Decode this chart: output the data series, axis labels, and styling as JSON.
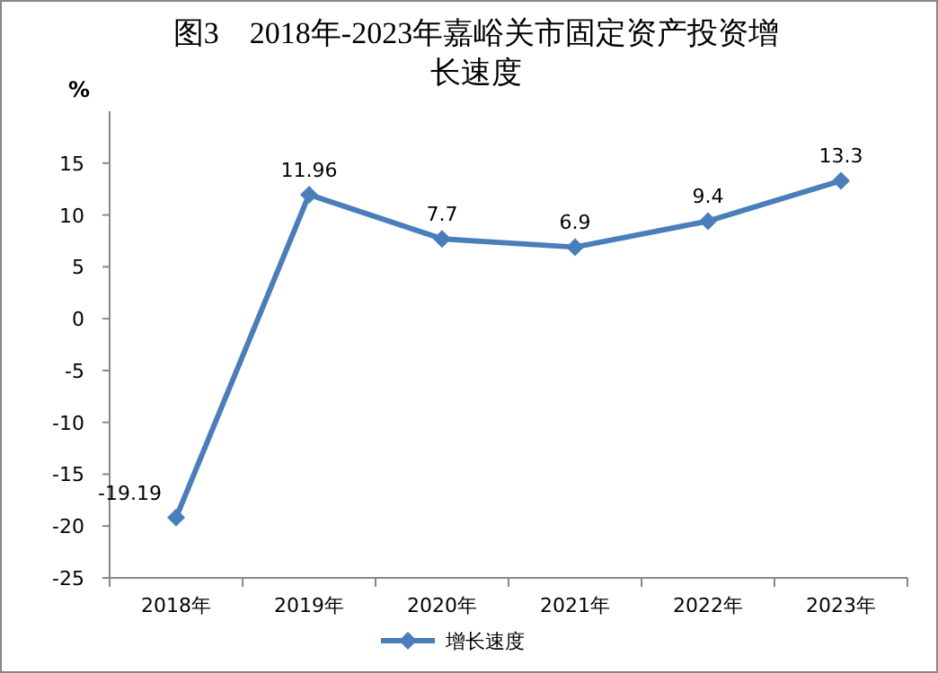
{
  "chart_data": {
    "type": "line",
    "title": "图3　2018年-2023年嘉峪关市固定资产投资增长速度",
    "ylabel": "%",
    "categories": [
      "2018年",
      "2019年",
      "2020年",
      "2021年",
      "2022年",
      "2023年"
    ],
    "series": [
      {
        "name": "增长速度",
        "color": "#4a7ebb",
        "values": [
          -19.19,
          11.96,
          7.7,
          6.9,
          9.4,
          13.3
        ]
      }
    ],
    "ylim": [
      -25,
      20
    ],
    "yticks": [
      -25,
      -20,
      -15,
      -10,
      -5,
      0,
      5,
      10,
      15
    ],
    "data_labels": true,
    "legend": "bottom",
    "marker": "diamond",
    "grid": false
  }
}
